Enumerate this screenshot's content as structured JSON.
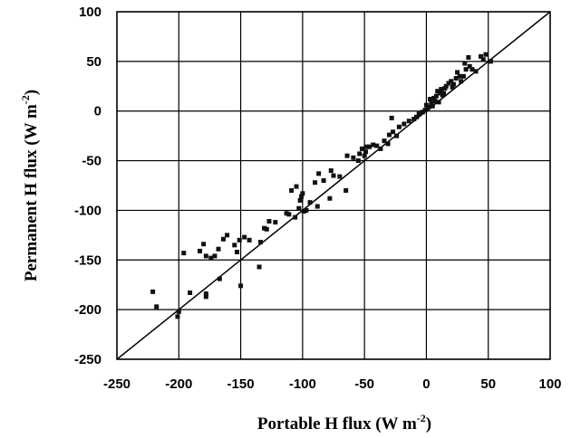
{
  "chart_data": {
    "type": "scatter",
    "xlabel_main": "Portable H flux (W m",
    "xlabel_sup": "-2",
    "xlabel_close": ")",
    "ylabel_main": "Permanent H flux (W m",
    "ylabel_sup": "-2",
    "ylabel_close": ")",
    "xlim": [
      -250,
      100
    ],
    "ylim": [
      -250,
      100
    ],
    "xticks": [
      "-250",
      "-200",
      "-150",
      "-100",
      "-50",
      "0",
      "50",
      "100"
    ],
    "yticks": [
      "100",
      "50",
      "0",
      "-50",
      "-100",
      "-150",
      "-200",
      "-250"
    ],
    "grid": true,
    "reference_line": "1:1",
    "marker": "square",
    "color": "#111111",
    "points": [
      [
        -221,
        -182
      ],
      [
        -218,
        -197
      ],
      [
        -201,
        -207
      ],
      [
        -200,
        -202
      ],
      [
        -196,
        -143
      ],
      [
        -191,
        -183
      ],
      [
        -183,
        -141
      ],
      [
        -180,
        -134
      ],
      [
        -178,
        -146
      ],
      [
        -178,
        -187
      ],
      [
        -178,
        -184
      ],
      [
        -174,
        -148
      ],
      [
        -171,
        -146
      ],
      [
        -168,
        -139
      ],
      [
        -167,
        -169
      ],
      [
        -164,
        -129
      ],
      [
        -161,
        -125
      ],
      [
        -155,
        -135
      ],
      [
        -153,
        -142
      ],
      [
        -151,
        -130
      ],
      [
        -150,
        -176
      ],
      [
        -147,
        -127
      ],
      [
        -143,
        -130
      ],
      [
        -135,
        -157
      ],
      [
        -134,
        -132
      ],
      [
        -131,
        -118
      ],
      [
        -129,
        -119
      ],
      [
        -127,
        -111
      ],
      [
        -122,
        -112
      ],
      [
        -113,
        -103
      ],
      [
        -111,
        -104
      ],
      [
        -109,
        -80
      ],
      [
        -106,
        -107
      ],
      [
        -105,
        -76
      ],
      [
        -103,
        -98
      ],
      [
        -102,
        -90
      ],
      [
        -101,
        -86
      ],
      [
        -100,
        -83
      ],
      [
        -99,
        -101
      ],
      [
        -97,
        -100
      ],
      [
        -94,
        -92
      ],
      [
        -90,
        -72
      ],
      [
        -88,
        -96
      ],
      [
        -87,
        -63
      ],
      [
        -83,
        -70
      ],
      [
        -78,
        -88
      ],
      [
        -77,
        -60
      ],
      [
        -75,
        -65
      ],
      [
        -70,
        -66
      ],
      [
        -65,
        -80
      ],
      [
        -64,
        -45
      ],
      [
        -59,
        -47
      ],
      [
        -55,
        -50
      ],
      [
        -54,
        -43
      ],
      [
        -52,
        -38
      ],
      [
        -50,
        -45
      ],
      [
        -49,
        -41
      ],
      [
        -48,
        -36
      ],
      [
        -46,
        -36
      ],
      [
        -43,
        -34
      ],
      [
        -40,
        -35
      ],
      [
        -37,
        -38
      ],
      [
        -34,
        -30
      ],
      [
        -31,
        -33
      ],
      [
        -30,
        -24
      ],
      [
        -28,
        -7
      ],
      [
        -27,
        -21
      ],
      [
        -24,
        -25
      ],
      [
        -22,
        -16
      ],
      [
        -18,
        -13
      ],
      [
        -14,
        -10
      ],
      [
        -10,
        -8
      ],
      [
        -8,
        -6
      ],
      [
        -6,
        -3
      ],
      [
        -3,
        -1
      ],
      [
        -1,
        1
      ],
      [
        0,
        6
      ],
      [
        1,
        3
      ],
      [
        2,
        4
      ],
      [
        3,
        12
      ],
      [
        4,
        8
      ],
      [
        5,
        5
      ],
      [
        6,
        13
      ],
      [
        7,
        10
      ],
      [
        8,
        15
      ],
      [
        9,
        20
      ],
      [
        10,
        9
      ],
      [
        11,
        18
      ],
      [
        12,
        22
      ],
      [
        13,
        16
      ],
      [
        14,
        18
      ],
      [
        15,
        23
      ],
      [
        16,
        25
      ],
      [
        18,
        28
      ],
      [
        20,
        30
      ],
      [
        21,
        24
      ],
      [
        22,
        27
      ],
      [
        24,
        33
      ],
      [
        25,
        39
      ],
      [
        27,
        35
      ],
      [
        28,
        30
      ],
      [
        30,
        35
      ],
      [
        31,
        48
      ],
      [
        32,
        42
      ],
      [
        34,
        54
      ],
      [
        35,
        45
      ],
      [
        37,
        42
      ],
      [
        40,
        40
      ],
      [
        44,
        55
      ],
      [
        46,
        52
      ],
      [
        48,
        57
      ],
      [
        52,
        50
      ]
    ]
  }
}
